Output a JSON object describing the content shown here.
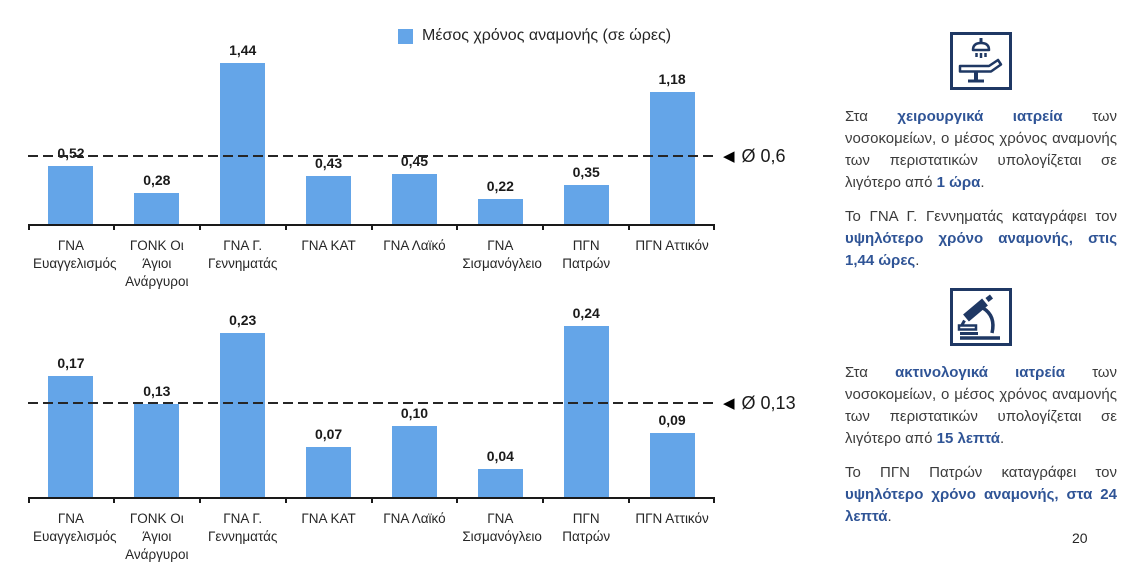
{
  "colors": {
    "bar": "#64A5E8",
    "accent_text": "#2F5496",
    "icon_navy": "#1F3864",
    "body_text": "#3B3B3B",
    "axis": "#1a1a1a"
  },
  "legend": {
    "label": "Μέσος χρόνος αναμονής (σε ώρες)"
  },
  "icons": {
    "left_arrow": "◀"
  },
  "page_number": "20",
  "chart_data": [
    {
      "type": "bar",
      "title": "",
      "legend": "Μέσος χρόνος αναμονής (σε ώρες)",
      "legend_position": "top",
      "grid": false,
      "categories": [
        "ΓΝΑ Ευαγγελισμός",
        "ΓΟΝΚ Οι Άγιοι Ανάργυροι",
        "ΓΝΑ Γ. Γεννηματάς",
        "ΓΝΑ ΚΑΤ",
        "ΓΝΑ Λαϊκό",
        "ΓΝΑ Σισμανόγλειο",
        "ΠΓΝ Πατρών",
        "ΠΓΝ Αττικόν"
      ],
      "values": [
        0.52,
        0.28,
        1.44,
        0.43,
        0.45,
        0.22,
        0.35,
        1.18
      ],
      "value_labels": [
        "0,52",
        "0,28",
        "1,44",
        "0,43",
        "0,45",
        "0,22",
        "0,35",
        "1,18"
      ],
      "average": 0.6,
      "average_label": "Ø 0,6",
      "xlabel": "",
      "ylabel": "",
      "ylim": [
        0,
        1.6
      ]
    },
    {
      "type": "bar",
      "title": "",
      "legend": "",
      "legend_position": "none",
      "grid": false,
      "categories": [
        "ΓΝΑ Ευαγγελισμός",
        "ΓΟΝΚ Οι Άγιοι Ανάργυροι",
        "ΓΝΑ Γ. Γεννηματάς",
        "ΓΝΑ ΚΑΤ",
        "ΓΝΑ Λαϊκό",
        "ΓΝΑ Σισμανόγλειο",
        "ΠΓΝ Πατρών",
        "ΠΓΝ Αττικόν"
      ],
      "values": [
        0.17,
        0.13,
        0.23,
        0.07,
        0.1,
        0.04,
        0.24,
        0.09
      ],
      "value_labels": [
        "0,17",
        "0,13",
        "0,23",
        "0,07",
        "0,10",
        "0,04",
        "0,24",
        "0,09"
      ],
      "average": 0.13,
      "average_label": "Ø 0,13",
      "xlabel": "",
      "ylabel": "",
      "ylim": [
        0,
        0.26
      ]
    }
  ],
  "panels": [
    {
      "icon": "operating-room-icon",
      "paragraphs": [
        {
          "segments": [
            {
              "t": "Στα ",
              "b": false
            },
            {
              "t": "χειρουργικά ιατρεία",
              "b": true
            },
            {
              "t": " των νοσοκομείων, ο μέσος χρόνος αναμονής των περιστατικών υπολογίζεται σε λιγότερο από ",
              "b": false
            },
            {
              "t": "1 ώρα",
              "b": true
            },
            {
              "t": ".",
              "b": false
            }
          ]
        },
        {
          "segments": [
            {
              "t": "Το ΓΝΑ Γ. Γεννηματάς καταγράφει τον ",
              "b": false
            },
            {
              "t": "υψηλότερο χρόνο αναμονής, στις 1,44 ώρες",
              "b": true
            },
            {
              "t": ".",
              "b": false
            }
          ]
        }
      ]
    },
    {
      "icon": "microscope-icon",
      "paragraphs": [
        {
          "segments": [
            {
              "t": "Στα ",
              "b": false
            },
            {
              "t": "ακτινολογικά ιατρεία",
              "b": true
            },
            {
              "t": " των νοσοκομείων, ο μέσος χρόνος αναμονής των περιστατικών υπολογίζεται σε λιγότερο από ",
              "b": false
            },
            {
              "t": "15 λεπτά",
              "b": true
            },
            {
              "t": ".",
              "b": false
            }
          ]
        },
        {
          "segments": [
            {
              "t": "Το ΠΓΝ Πατρών καταγράφει τον ",
              "b": false
            },
            {
              "t": "υψηλότερο χρόνο αναμονής, στα 24 λεπτά",
              "b": true
            },
            {
              "t": ".",
              "b": false
            }
          ]
        }
      ]
    }
  ]
}
